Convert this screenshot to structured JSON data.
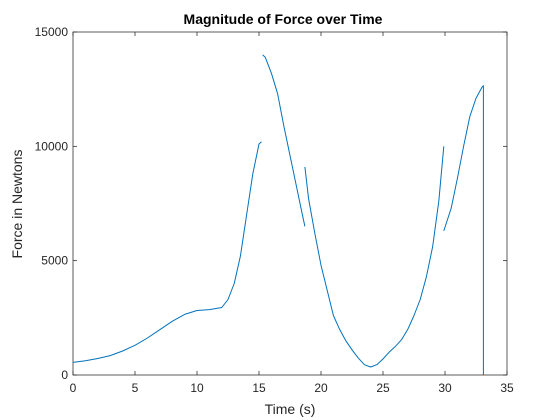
{
  "chart_data": {
    "type": "line",
    "title": "Magnitude of Force over Time",
    "xlabel": "Time (s)",
    "ylabel": "Force in Newtons",
    "xlim": [
      0,
      35
    ],
    "ylim": [
      0,
      15000
    ],
    "xticks": [
      0,
      5,
      10,
      15,
      20,
      25,
      30,
      35
    ],
    "yticks": [
      0,
      5000,
      10000,
      15000
    ],
    "grid": false,
    "box": true,
    "series_color": "#0072BD",
    "series": [
      {
        "segments": [
          [
            [
              0,
              550
            ],
            [
              1,
              620
            ],
            [
              2,
              720
            ],
            [
              3,
              850
            ],
            [
              4,
              1050
            ],
            [
              5,
              1300
            ],
            [
              6,
              1620
            ],
            [
              7,
              1980
            ],
            [
              8,
              2350
            ],
            [
              9,
              2650
            ],
            [
              10,
              2820
            ],
            [
              11,
              2860
            ],
            [
              12,
              2950
            ],
            [
              12.5,
              3300
            ],
            [
              13,
              4000
            ],
            [
              13.5,
              5200
            ],
            [
              14,
              7000
            ],
            [
              14.5,
              8800
            ],
            [
              15,
              10100
            ],
            [
              15.2,
              10200
            ]
          ],
          [
            [
              15.3,
              14000
            ],
            [
              15.5,
              13900
            ],
            [
              16,
              13200
            ],
            [
              16.5,
              12300
            ],
            [
              17,
              10900
            ],
            [
              17.5,
              9600
            ],
            [
              18,
              8300
            ],
            [
              18.5,
              7000
            ],
            [
              18.7,
              6500
            ]
          ],
          [
            [
              18.7,
              9100
            ],
            [
              19,
              7700
            ],
            [
              19.5,
              6200
            ],
            [
              20,
              4800
            ],
            [
              20.5,
              3700
            ],
            [
              21,
              2600
            ],
            [
              21.5,
              2000
            ],
            [
              22,
              1500
            ],
            [
              22.5,
              1100
            ],
            [
              23,
              750
            ],
            [
              23.5,
              450
            ],
            [
              24,
              350
            ],
            [
              24.5,
              450
            ],
            [
              25,
              700
            ],
            [
              25.5,
              1000
            ],
            [
              26,
              1250
            ],
            [
              26.5,
              1550
            ],
            [
              27,
              2000
            ],
            [
              27.5,
              2600
            ],
            [
              28,
              3300
            ],
            [
              28.5,
              4300
            ],
            [
              29,
              5600
            ],
            [
              29.5,
              7600
            ],
            [
              29.9,
              10000
            ]
          ],
          [
            [
              29.9,
              6300
            ],
            [
              30.5,
              7300
            ],
            [
              31,
              8600
            ],
            [
              31.5,
              10000
            ],
            [
              32,
              11300
            ],
            [
              32.5,
              12100
            ],
            [
              33,
              12600
            ],
            [
              33.1,
              12650
            ],
            [
              33.1,
              0
            ]
          ]
        ]
      }
    ]
  }
}
